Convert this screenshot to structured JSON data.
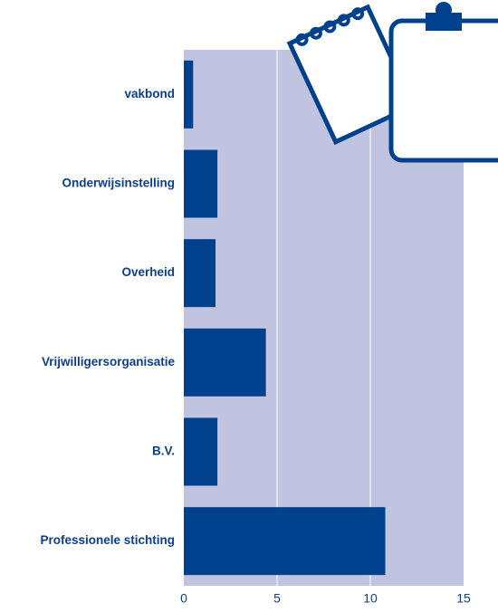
{
  "chart_data": {
    "type": "hbar",
    "categories": [
      "vakbond",
      "Onderwijsinstelling",
      "Overheid",
      "Vrijwilligersorganisatie",
      "B.V.",
      "Professionele stichting"
    ],
    "values": [
      0.5,
      1.8,
      1.7,
      4.4,
      1.8,
      10.8
    ],
    "color": "#00418d",
    "background": "#c0c4e0",
    "xlim": [
      0,
      15
    ],
    "xticks": [
      0,
      5,
      10,
      15
    ],
    "grid": true
  }
}
